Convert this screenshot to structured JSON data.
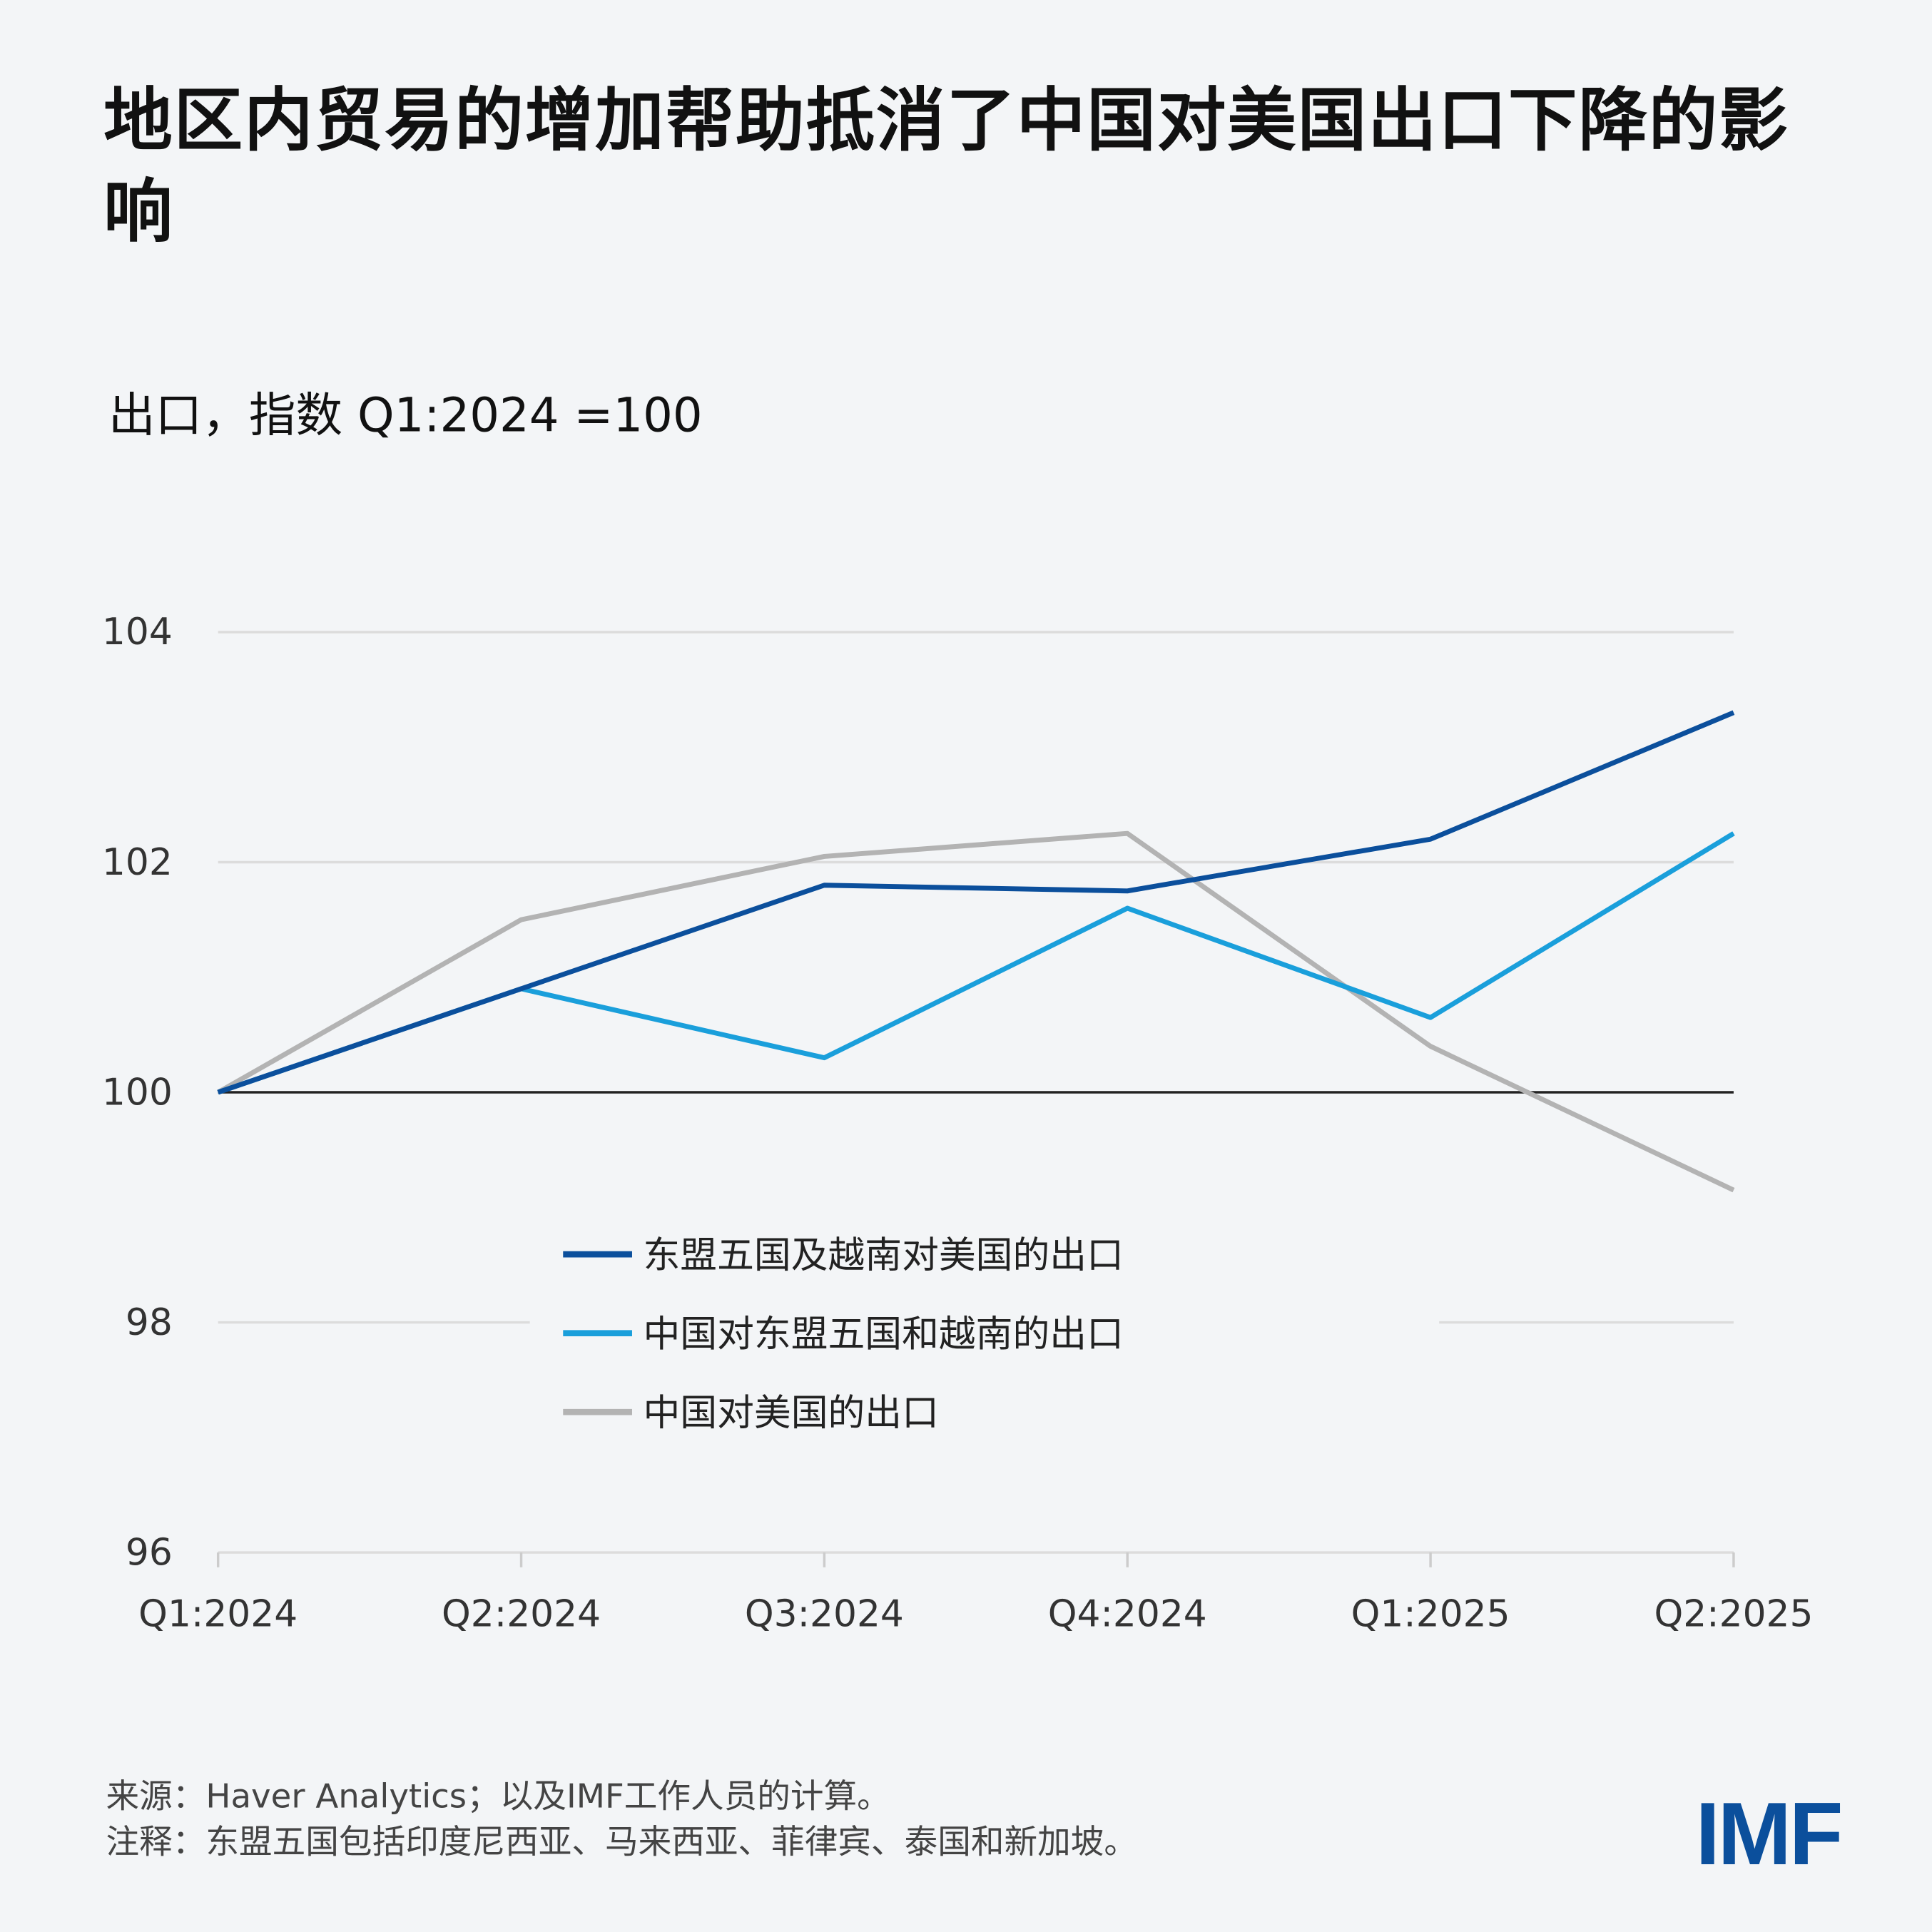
{
  "title": "地区内贸易的增加帮助抵消了中国对美国出口下降的影响",
  "subtitle": "出口，指数 Q1:2024 =100",
  "chart_data": {
    "type": "line",
    "title": "地区内贸易的增加帮助抵消了中国对美国出口下降的影响",
    "ylabel": "出口，指数 Q1:2024 =100",
    "x": [
      "Q1:2024",
      "Q2:2024",
      "Q3:2024",
      "Q4:2024",
      "Q1:2025",
      "Q2:2025"
    ],
    "ylim": [
      96,
      104
    ],
    "yticks": [
      "96",
      "98",
      "100",
      "102",
      "104"
    ],
    "grid": true,
    "legend_position": "center-bottom",
    "series": [
      {
        "name": "东盟五国及越南对美国的出口",
        "color": "#0b4f9c",
        "values": [
          100,
          100.9,
          101.8,
          101.75,
          102.2,
          103.3
        ]
      },
      {
        "name": "中国对东盟五国和越南的出口",
        "color": "#1a9fdb",
        "values": [
          100,
          100.9,
          100.3,
          101.6,
          100.65,
          102.25
        ]
      },
      {
        "name": "中国对美国的出口",
        "color": "#b3b3b3",
        "values": [
          100,
          101.5,
          102.05,
          102.25,
          100.4,
          99.15
        ]
      }
    ]
  },
  "footer": {
    "source": "来源：Haver Analytics；以及IMF工作人员的计算。",
    "note": "注释：东盟五国包括印度尼西亚、马来西亚、菲律宾、泰国和新加坡。"
  },
  "logo": "IMF"
}
